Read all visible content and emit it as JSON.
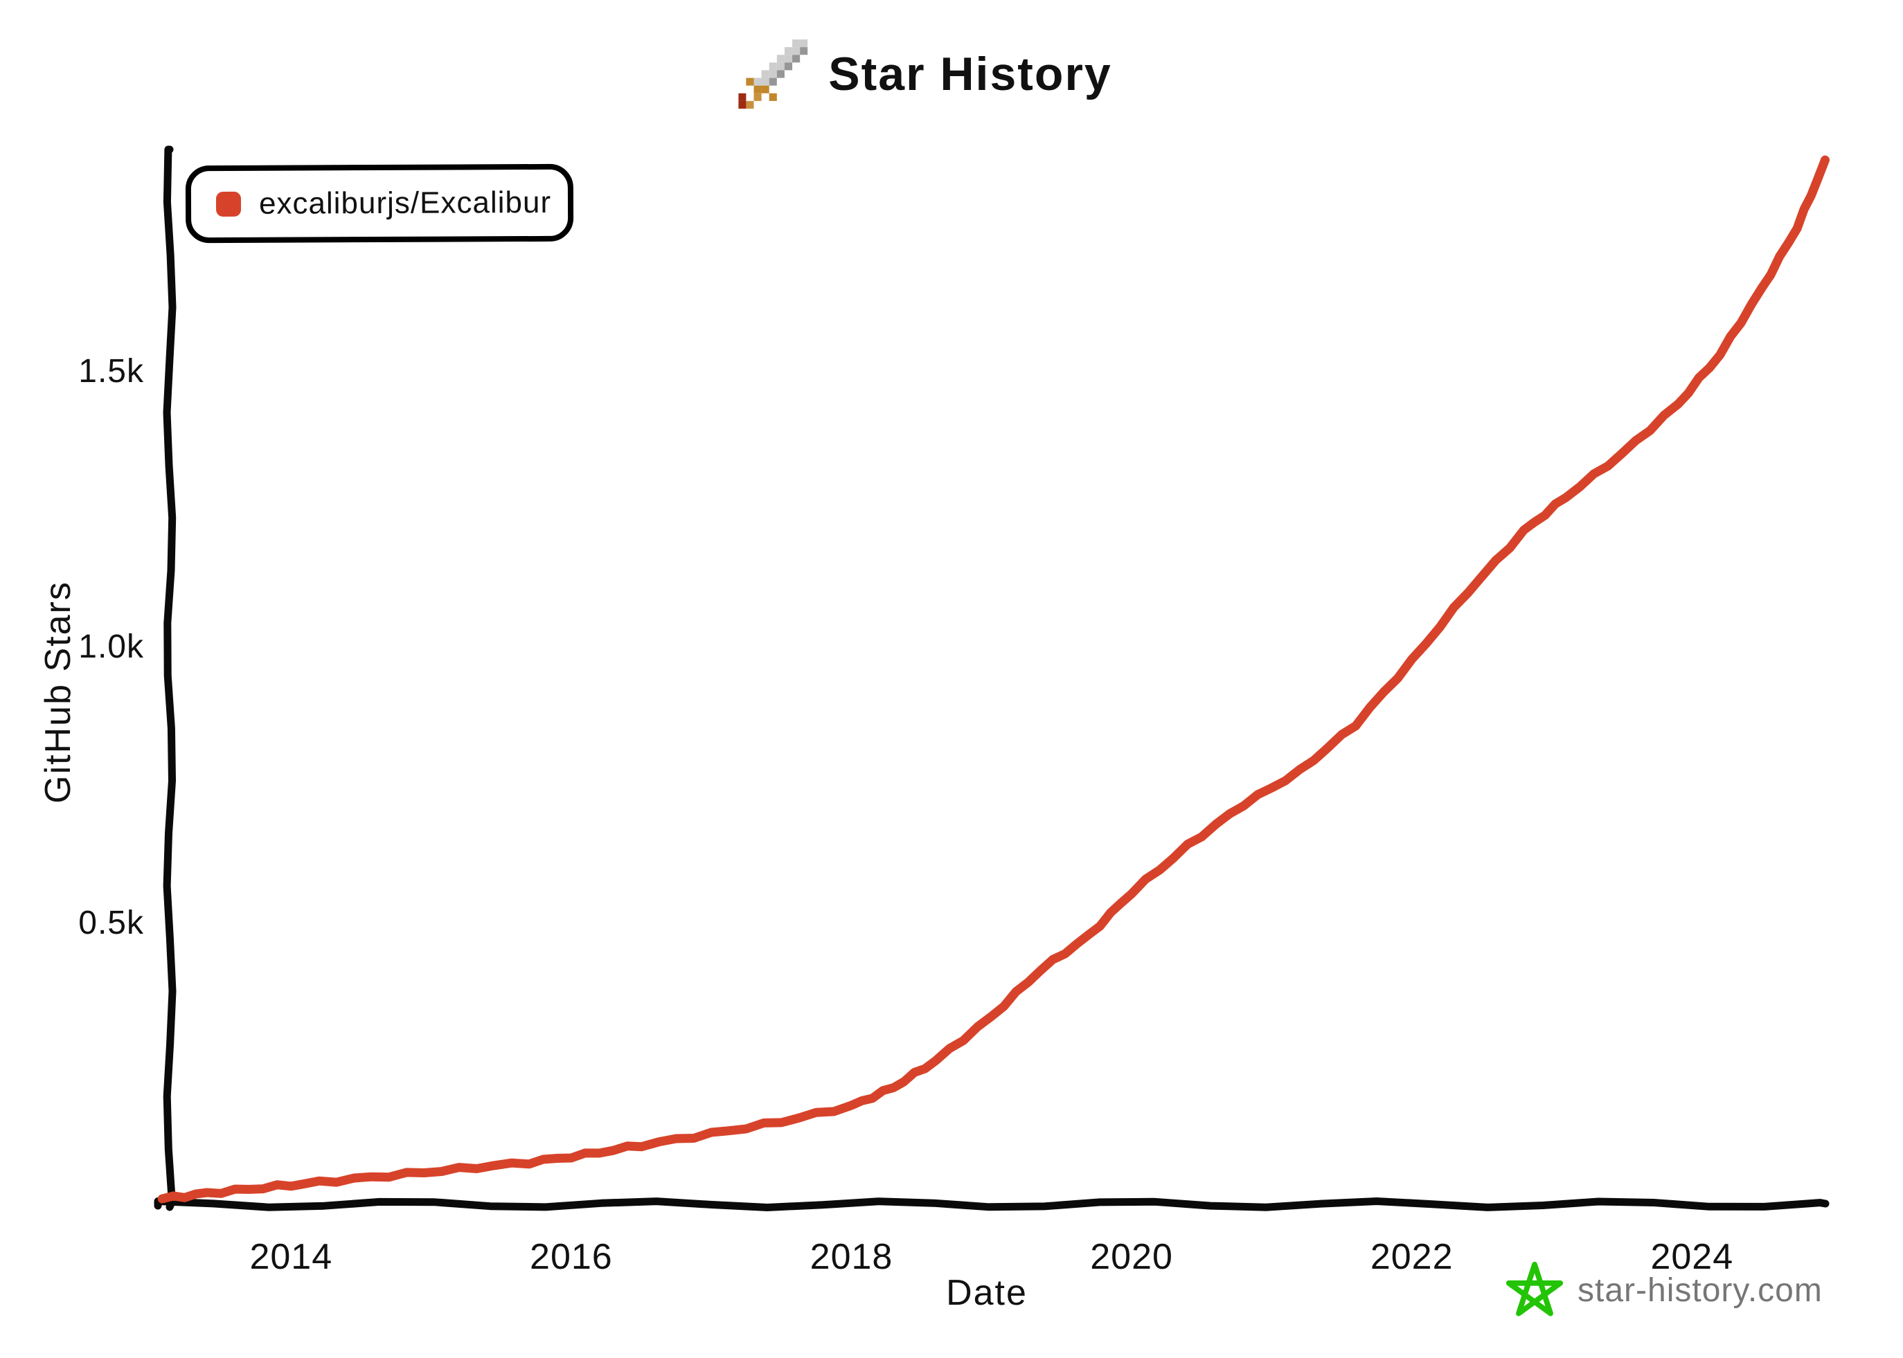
{
  "title": {
    "text": "Star History",
    "icon": "pixel-sword-icon"
  },
  "legend": {
    "items": [
      {
        "label": "excaliburjs/Excalibur",
        "color": "#D7432A"
      }
    ]
  },
  "watermark": {
    "text": "star-history.com",
    "icon": "green-star-icon",
    "icon_color": "#22C405",
    "text_color": "#767676"
  },
  "colors": {
    "axis": "#0a0a0a",
    "text": "#111111",
    "series_red": "#D7432A"
  },
  "chart_data": {
    "type": "line",
    "title": "Star History",
    "xlabel": "Date",
    "ylabel": "GitHub Stars",
    "x_range": [
      2013,
      2025.2
    ],
    "y_range": [
      0,
      1950
    ],
    "grid": false,
    "legend_position": "top-left",
    "x_ticks": [
      {
        "value": 2014,
        "label": "2014"
      },
      {
        "value": 2016,
        "label": "2016"
      },
      {
        "value": 2018,
        "label": "2018"
      },
      {
        "value": 2020,
        "label": "2020"
      },
      {
        "value": 2022,
        "label": "2022"
      },
      {
        "value": 2024,
        "label": "2024"
      }
    ],
    "y_ticks": [
      {
        "value": 500,
        "label": "0.5k"
      },
      {
        "value": 1000,
        "label": "1.0k"
      },
      {
        "value": 1500,
        "label": "1.5k"
      }
    ],
    "series": [
      {
        "name": "excaliburjs/Excalibur",
        "color": "#D7432A",
        "points": [
          [
            2013.08,
            0
          ],
          [
            2013.4,
            10
          ],
          [
            2013.8,
            20
          ],
          [
            2014.2,
            30
          ],
          [
            2014.7,
            42
          ],
          [
            2015.2,
            54
          ],
          [
            2015.7,
            66
          ],
          [
            2016.1,
            80
          ],
          [
            2016.5,
            97
          ],
          [
            2017.0,
            118
          ],
          [
            2017.5,
            140
          ],
          [
            2018.0,
            168
          ],
          [
            2018.3,
            202
          ],
          [
            2018.6,
            250
          ],
          [
            2019.0,
            330
          ],
          [
            2019.35,
            415
          ],
          [
            2019.7,
            478
          ],
          [
            2020.0,
            555
          ],
          [
            2020.4,
            640
          ],
          [
            2020.8,
            715
          ],
          [
            2021.2,
            775
          ],
          [
            2021.6,
            860
          ],
          [
            2022.0,
            975
          ],
          [
            2022.4,
            1100
          ],
          [
            2022.8,
            1210
          ],
          [
            2023.1,
            1272
          ],
          [
            2023.5,
            1350
          ],
          [
            2023.9,
            1440
          ],
          [
            2024.2,
            1530
          ],
          [
            2024.5,
            1650
          ],
          [
            2024.75,
            1760
          ],
          [
            2024.95,
            1880
          ]
        ]
      }
    ]
  }
}
